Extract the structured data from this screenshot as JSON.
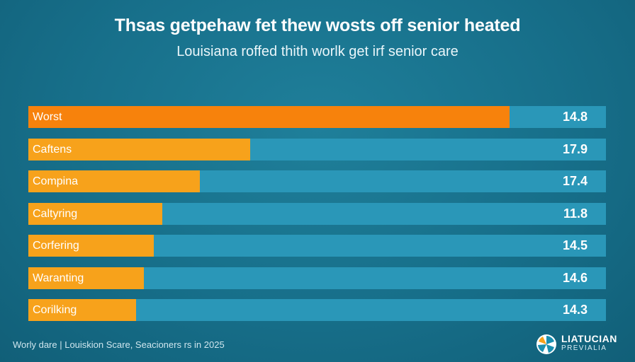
{
  "header": {
    "title": "Thsas getpehaw fet thew wosts off senior heated",
    "subtitle": "Louisiana roffed thith worlk get irf senior care"
  },
  "chart_data": {
    "type": "bar",
    "orientation": "horizontal",
    "categories": [
      "Worst",
      "Caftens",
      "Compina",
      "Caltyring",
      "Corfering",
      "Waranting",
      "Corilking"
    ],
    "values": [
      14.8,
      17.9,
      17.4,
      11.8,
      14.5,
      14.6,
      14.3
    ],
    "bar_fill_fraction": [
      0.833,
      0.384,
      0.297,
      0.232,
      0.217,
      0.2,
      0.187
    ],
    "colors": {
      "highlight": "#f7820c",
      "bar": "#f7a21b",
      "track": "#2a97b8"
    },
    "grid": false,
    "legend": "none"
  },
  "footer": {
    "source": "Worly dare | Louiskion Scare, Seacioners rs in 2025"
  },
  "logo": {
    "line1": "LIATUCIAN",
    "line2": "PREVIALIA"
  }
}
